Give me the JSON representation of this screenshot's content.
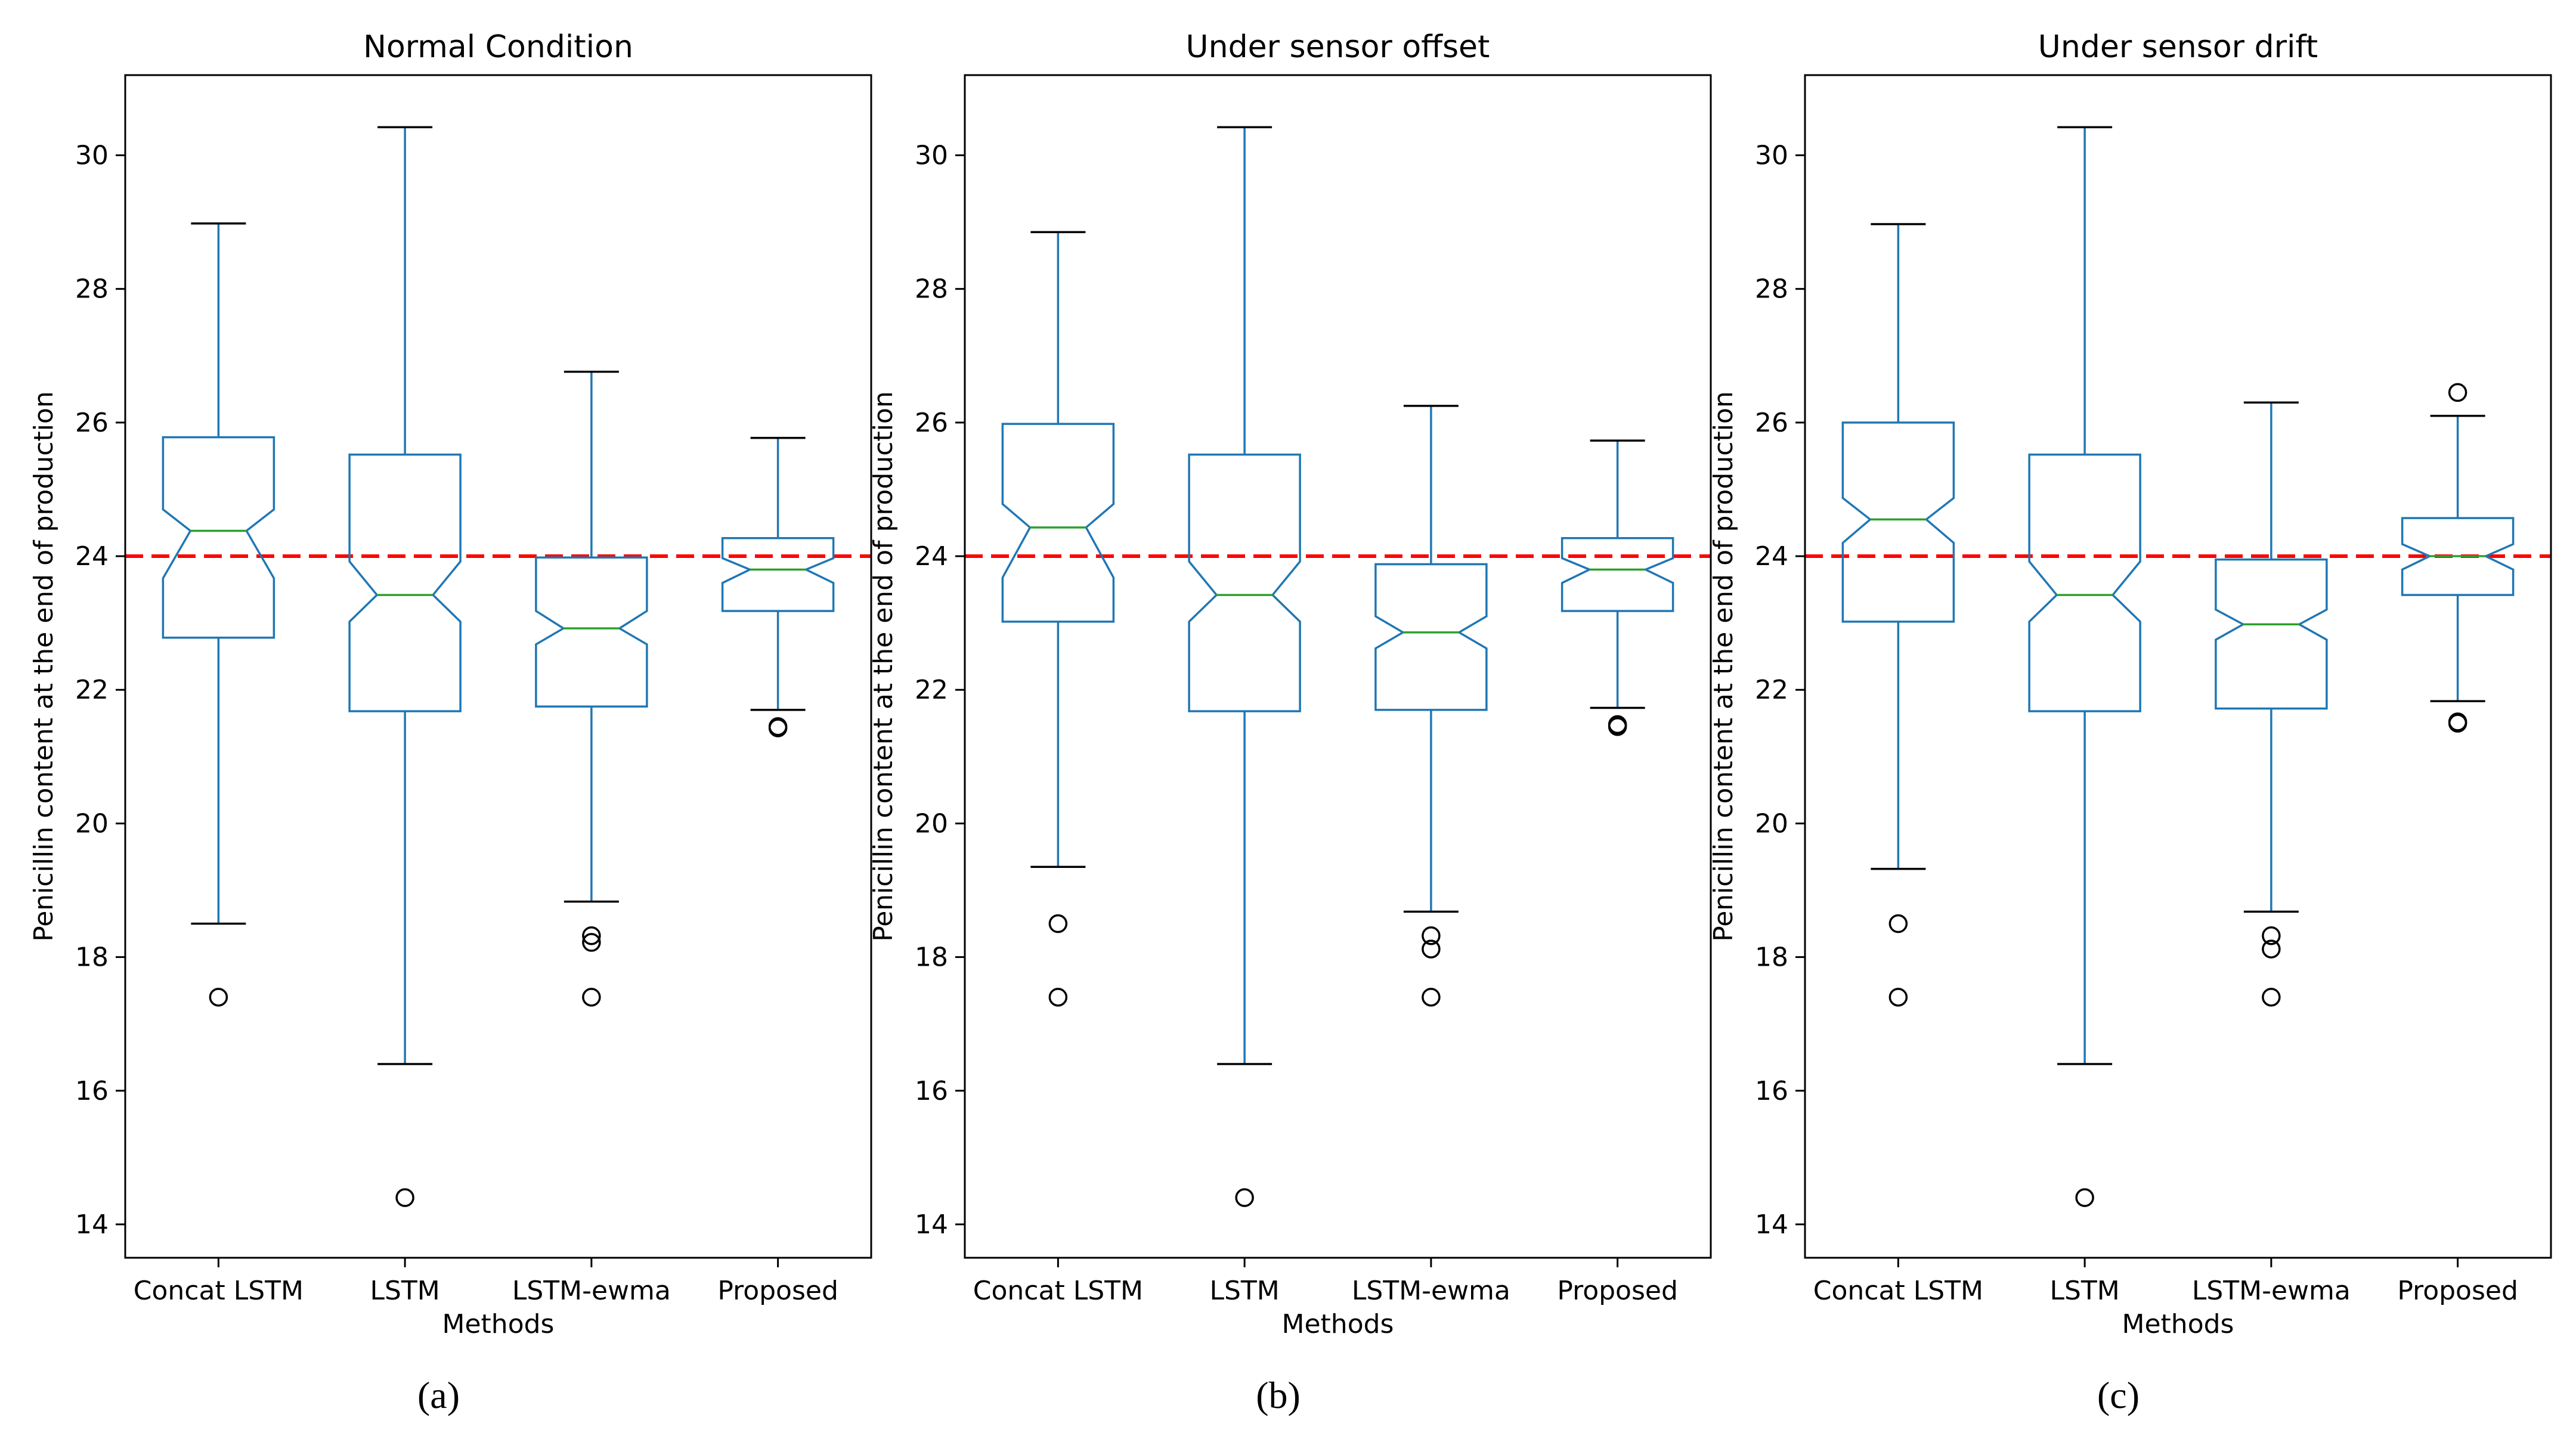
{
  "chart_data": [
    {
      "type": "boxplot",
      "panel_label": "(a)",
      "title": "Normal Condition",
      "xlabel": "Methods",
      "ylabel": "Penicillin content at the end of production",
      "ylim": [
        13.5,
        31.2
      ],
      "yticks": [
        14,
        16,
        18,
        20,
        22,
        24,
        26,
        28,
        30
      ],
      "reference_line": 24,
      "categories": [
        "Concat LSTM",
        "LSTM",
        "LSTM-ewma",
        "Proposed"
      ],
      "boxes": [
        {
          "whislo": 18.5,
          "q1": 22.78,
          "med": 24.38,
          "q3": 25.78,
          "whishi": 28.98,
          "notch_lo": 23.67,
          "notch_hi": 24.7,
          "fliers": [
            17.4
          ]
        },
        {
          "whislo": 16.4,
          "q1": 21.68,
          "med": 23.42,
          "q3": 25.52,
          "whishi": 30.42,
          "notch_lo": 23.02,
          "notch_hi": 23.92,
          "fliers": [
            14.4
          ]
        },
        {
          "whislo": 18.83,
          "q1": 21.75,
          "med": 22.92,
          "q3": 23.98,
          "whishi": 26.76,
          "notch_lo": 22.68,
          "notch_hi": 23.18,
          "fliers": [
            18.32,
            18.22,
            17.4
          ]
        },
        {
          "whislo": 21.7,
          "q1": 23.18,
          "med": 23.8,
          "q3": 24.27,
          "whishi": 25.77,
          "notch_lo": 23.6,
          "notch_hi": 23.97,
          "fliers": [
            21.45,
            21.43
          ]
        }
      ]
    },
    {
      "type": "boxplot",
      "panel_label": "(b)",
      "title": "Under sensor offset",
      "xlabel": "Methods",
      "ylabel": "Penicillin content at the end of production",
      "ylim": [
        13.5,
        31.2
      ],
      "yticks": [
        14,
        16,
        18,
        20,
        22,
        24,
        26,
        28,
        30
      ],
      "reference_line": 24,
      "categories": [
        "Concat LSTM",
        "LSTM",
        "LSTM-ewma",
        "Proposed"
      ],
      "boxes": [
        {
          "whislo": 19.35,
          "q1": 23.02,
          "med": 24.43,
          "q3": 25.98,
          "whishi": 28.85,
          "notch_lo": 23.68,
          "notch_hi": 24.78,
          "fliers": [
            18.5,
            17.4
          ]
        },
        {
          "whislo": 16.4,
          "q1": 21.68,
          "med": 23.42,
          "q3": 25.52,
          "whishi": 30.42,
          "notch_lo": 23.02,
          "notch_hi": 23.92,
          "fliers": [
            14.4
          ]
        },
        {
          "whislo": 18.68,
          "q1": 21.7,
          "med": 22.86,
          "q3": 23.88,
          "whishi": 26.25,
          "notch_lo": 22.62,
          "notch_hi": 23.1,
          "fliers": [
            18.32,
            18.12,
            17.4
          ]
        },
        {
          "whislo": 21.73,
          "q1": 23.18,
          "med": 23.8,
          "q3": 24.27,
          "whishi": 25.73,
          "notch_lo": 23.6,
          "notch_hi": 23.97,
          "fliers": [
            21.48,
            21.45
          ]
        }
      ]
    },
    {
      "type": "boxplot",
      "panel_label": "(c)",
      "title": "Under sensor drift",
      "xlabel": "Methods",
      "ylabel": "Penicillin content at the end of production",
      "ylim": [
        13.5,
        31.2
      ],
      "yticks": [
        14,
        16,
        18,
        20,
        22,
        24,
        26,
        28,
        30
      ],
      "reference_line": 24,
      "categories": [
        "Concat LSTM",
        "LSTM",
        "LSTM-ewma",
        "Proposed"
      ],
      "boxes": [
        {
          "whislo": 19.32,
          "q1": 23.02,
          "med": 24.55,
          "q3": 26.0,
          "whishi": 28.97,
          "notch_lo": 24.2,
          "notch_hi": 24.87,
          "fliers": [
            18.5,
            17.4
          ]
        },
        {
          "whislo": 16.4,
          "q1": 21.68,
          "med": 23.42,
          "q3": 25.52,
          "whishi": 30.42,
          "notch_lo": 23.02,
          "notch_hi": 23.92,
          "fliers": [
            14.4
          ]
        },
        {
          "whislo": 18.68,
          "q1": 21.72,
          "med": 22.98,
          "q3": 23.95,
          "whishi": 26.3,
          "notch_lo": 22.75,
          "notch_hi": 23.2,
          "fliers": [
            18.32,
            18.12,
            17.4
          ]
        },
        {
          "whislo": 21.83,
          "q1": 23.42,
          "med": 24.0,
          "q3": 24.57,
          "whishi": 26.1,
          "notch_lo": 23.8,
          "notch_hi": 24.18,
          "fliers": [
            26.45,
            21.52,
            21.5
          ]
        }
      ]
    }
  ],
  "colors": {
    "box": "#1f77b4",
    "median": "#2ca02c",
    "reference_line": "#ff0000",
    "whisker_cap": "#000000",
    "flier": "#000000",
    "axes": "#000000"
  }
}
